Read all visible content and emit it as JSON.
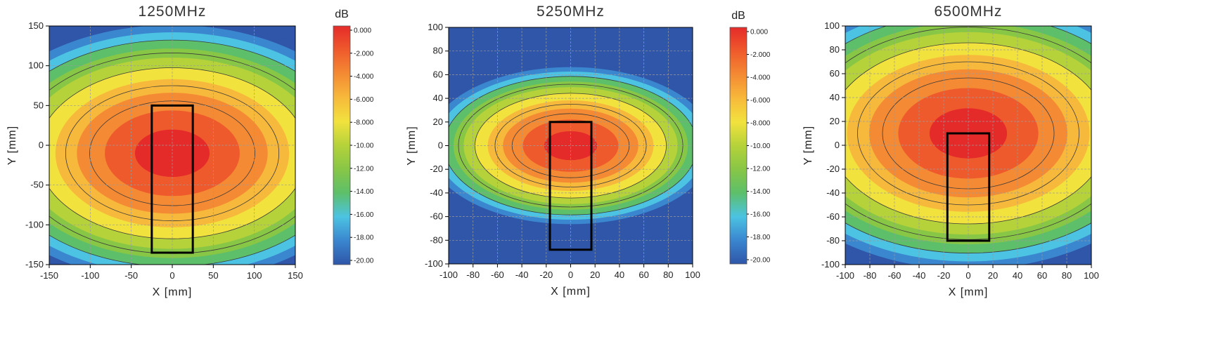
{
  "colors": {
    "scale": [
      "#2f56a8",
      "#3a86cf",
      "#4cc3e2",
      "#5dbf6a",
      "#88c646",
      "#b5d23a",
      "#f2e23e",
      "#f7b93b",
      "#f48a33",
      "#ef5a2c",
      "#e52b2a"
    ],
    "contour_line": "#3a3a3a",
    "grid": "#9a9a9a",
    "outline": "#000000"
  },
  "chart_data": [
    {
      "type": "heatmap",
      "title": "1250MHz",
      "xlabel": "X [mm]",
      "ylabel": "Y [mm]",
      "xlim": [
        -150,
        150
      ],
      "ylim": [
        -150,
        150
      ],
      "xticks": [
        "-150",
        "-100",
        "-50",
        "0",
        "50",
        "100",
        "150"
      ],
      "yticks": [
        "150",
        "100",
        "50",
        "0",
        "-50",
        "-100",
        "-150"
      ],
      "grid": true,
      "peak": [
        0,
        -10
      ],
      "half_width": [
        130,
        85
      ],
      "rectangle": {
        "x": [
          -25,
          25
        ],
        "y": [
          -135,
          50
        ]
      },
      "has_colorbar": true
    },
    {
      "type": "heatmap",
      "title": "5250MHz",
      "xlabel": "X [mm]",
      "ylabel": "Y [mm]",
      "xlim": [
        -100,
        100
      ],
      "ylim": [
        -100,
        100
      ],
      "xticks": [
        "-100",
        "-80",
        "-60",
        "-40",
        "-20",
        "0",
        "20",
        "40",
        "60",
        "80",
        "100"
      ],
      "yticks": [
        "100",
        "80",
        "60",
        "40",
        "20",
        "0",
        "-20",
        "-40",
        "-60",
        "-80",
        "-100"
      ],
      "grid": true,
      "peak": [
        0,
        0
      ],
      "half_width": [
        62,
        35
      ],
      "rectangle": {
        "x": [
          -17,
          17
        ],
        "y": [
          -88,
          20
        ]
      },
      "has_colorbar": true
    },
    {
      "type": "heatmap",
      "title": "6500MHz",
      "xlabel": "X [mm]",
      "ylabel": "Y [mm]",
      "xlim": [
        -100,
        100
      ],
      "ylim": [
        -100,
        100
      ],
      "xticks": [
        "-100",
        "-80",
        "-60",
        "-40",
        "-20",
        "0",
        "20",
        "40",
        "60",
        "80",
        "100"
      ],
      "yticks": [
        "100",
        "80",
        "60",
        "40",
        "20",
        "0",
        "-20",
        "-40",
        "-60",
        "-80",
        "-100"
      ],
      "grid": true,
      "peak": [
        0,
        10
      ],
      "half_width": [
        90,
        60
      ],
      "rectangle": {
        "x": [
          -17,
          17
        ],
        "y": [
          -80,
          10
        ]
      },
      "has_colorbar": false
    }
  ],
  "colorbar": {
    "unit": "dB",
    "range": [
      -20,
      0
    ],
    "labels": [
      "0.000",
      "-2.000",
      "-4.000",
      "-6.000",
      "-8.000",
      "-10.00",
      "-12.00",
      "-14.00",
      "-16.00",
      "-18.00",
      "-20.00"
    ]
  }
}
